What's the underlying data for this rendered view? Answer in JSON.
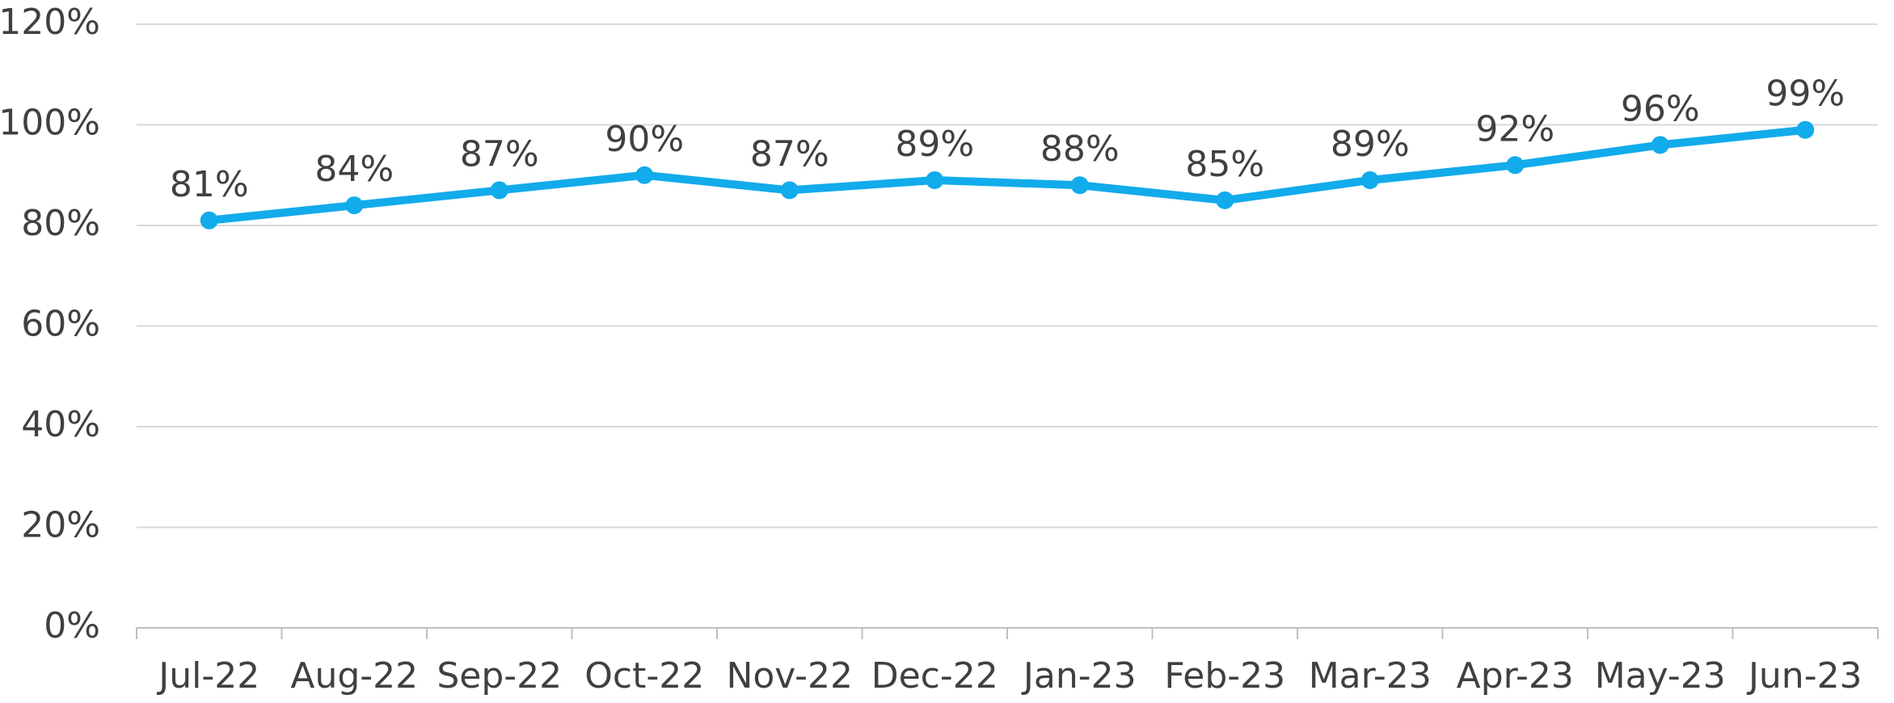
{
  "chart_data": {
    "type": "line",
    "categories": [
      "Jul-22",
      "Aug-22",
      "Sep-22",
      "Oct-22",
      "Nov-22",
      "Dec-22",
      "Jan-23",
      "Feb-23",
      "Mar-23",
      "Apr-23",
      "May-23",
      "Jun-23"
    ],
    "series": [
      {
        "color": "#12abeb",
        "values": [
          81,
          84,
          87,
          90,
          87,
          89,
          88,
          85,
          89,
          92,
          96,
          99
        ],
        "value_labels": [
          "81%",
          "84%",
          "87%",
          "90%",
          "87%",
          "89%",
          "88%",
          "85%",
          "89%",
          "92%",
          "96%",
          "99%"
        ]
      }
    ],
    "ylim": [
      0,
      120
    ],
    "yticks": [
      {
        "value": 0,
        "label": "0%"
      },
      {
        "value": 20,
        "label": "20%"
      },
      {
        "value": 40,
        "label": "40%"
      },
      {
        "value": 60,
        "label": "60%"
      },
      {
        "value": 80,
        "label": "80%"
      },
      {
        "value": 100,
        "label": "100%"
      },
      {
        "value": 120,
        "label": "120%"
      }
    ],
    "grid": true
  }
}
